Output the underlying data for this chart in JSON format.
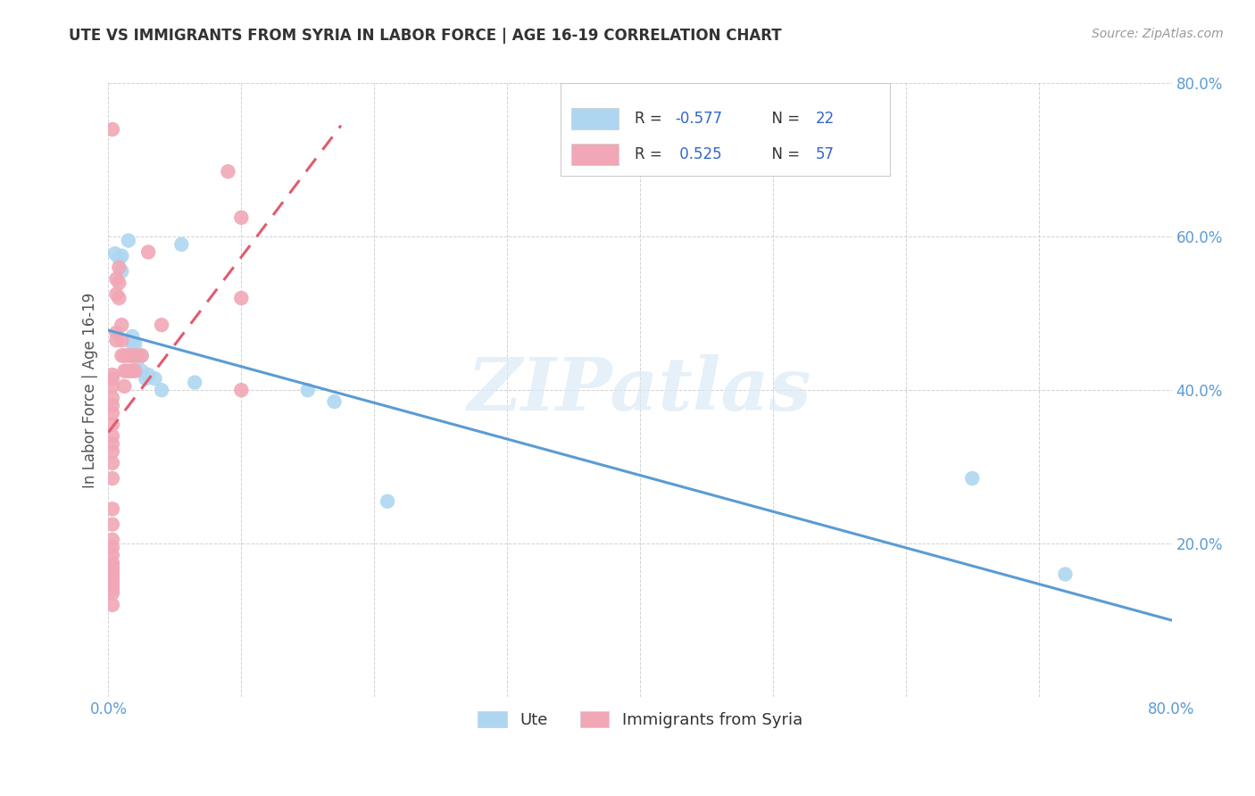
{
  "title": "UTE VS IMMIGRANTS FROM SYRIA IN LABOR FORCE | AGE 16-19 CORRELATION CHART",
  "source": "Source: ZipAtlas.com",
  "ylabel": "In Labor Force | Age 16-19",
  "xlim": [
    0.0,
    0.8
  ],
  "ylim": [
    0.0,
    0.8
  ],
  "xtick_positions": [
    0.0,
    0.1,
    0.2,
    0.3,
    0.4,
    0.5,
    0.6,
    0.7,
    0.8
  ],
  "xticklabels": [
    "0.0%",
    "",
    "",
    "",
    "",
    "",
    "",
    "",
    "80.0%"
  ],
  "ytick_positions": [
    0.0,
    0.2,
    0.4,
    0.6,
    0.8
  ],
  "yticklabels": [
    "",
    "20.0%",
    "40.0%",
    "60.0%",
    "80.0%"
  ],
  "background_color": "#ffffff",
  "blue_scatter_x": [
    0.005,
    0.008,
    0.01,
    0.01,
    0.015,
    0.018,
    0.018,
    0.02,
    0.022,
    0.025,
    0.025,
    0.028,
    0.03,
    0.035,
    0.04,
    0.055,
    0.065,
    0.15,
    0.17,
    0.21,
    0.65,
    0.72
  ],
  "blue_scatter_y": [
    0.578,
    0.572,
    0.575,
    0.555,
    0.595,
    0.46,
    0.47,
    0.46,
    0.44,
    0.425,
    0.445,
    0.415,
    0.42,
    0.415,
    0.4,
    0.59,
    0.41,
    0.4,
    0.385,
    0.255,
    0.285,
    0.16
  ],
  "pink_scatter_x": [
    0.003,
    0.003,
    0.003,
    0.003,
    0.003,
    0.003,
    0.003,
    0.003,
    0.003,
    0.003,
    0.003,
    0.003,
    0.003,
    0.003,
    0.003,
    0.003,
    0.003,
    0.003,
    0.003,
    0.003,
    0.003,
    0.003,
    0.003,
    0.003,
    0.003,
    0.003,
    0.003,
    0.003,
    0.006,
    0.006,
    0.006,
    0.006,
    0.008,
    0.008,
    0.008,
    0.01,
    0.01,
    0.01,
    0.012,
    0.012,
    0.012,
    0.014,
    0.014,
    0.016,
    0.016,
    0.018,
    0.018,
    0.02,
    0.02,
    0.022,
    0.025,
    0.03,
    0.04,
    0.09,
    0.1,
    0.1,
    0.1
  ],
  "pink_scatter_y": [
    0.74,
    0.42,
    0.415,
    0.405,
    0.39,
    0.38,
    0.37,
    0.355,
    0.34,
    0.33,
    0.32,
    0.305,
    0.285,
    0.245,
    0.225,
    0.205,
    0.195,
    0.185,
    0.175,
    0.17,
    0.165,
    0.16,
    0.155,
    0.15,
    0.145,
    0.14,
    0.135,
    0.12,
    0.545,
    0.525,
    0.475,
    0.465,
    0.56,
    0.54,
    0.52,
    0.485,
    0.465,
    0.445,
    0.445,
    0.425,
    0.405,
    0.445,
    0.425,
    0.445,
    0.425,
    0.445,
    0.425,
    0.445,
    0.425,
    0.445,
    0.445,
    0.58,
    0.485,
    0.685,
    0.625,
    0.52,
    0.4
  ],
  "blue_line_x": [
    0.0,
    0.8
  ],
  "blue_line_y": [
    0.478,
    0.1
  ],
  "pink_line_x": [
    0.0,
    0.175
  ],
  "pink_line_y": [
    0.345,
    0.745
  ],
  "blue_line_color": "#5B9BD5",
  "blue_scatter_color": "#AED6F1",
  "pink_line_color": "#E05C6E",
  "pink_scatter_color": "#F1A7B5",
  "legend_blue_r": "-0.577",
  "legend_blue_n": "22",
  "legend_pink_r": "0.525",
  "legend_pink_n": "57",
  "legend_blue_label": "Ute",
  "legend_pink_label": "Immigrants from Syria",
  "text_dark": "#333333",
  "text_blue": "#3366CC",
  "tick_color": "#5B9BD5",
  "grid_color": "#cccccc",
  "ylabel_color": "#555555"
}
